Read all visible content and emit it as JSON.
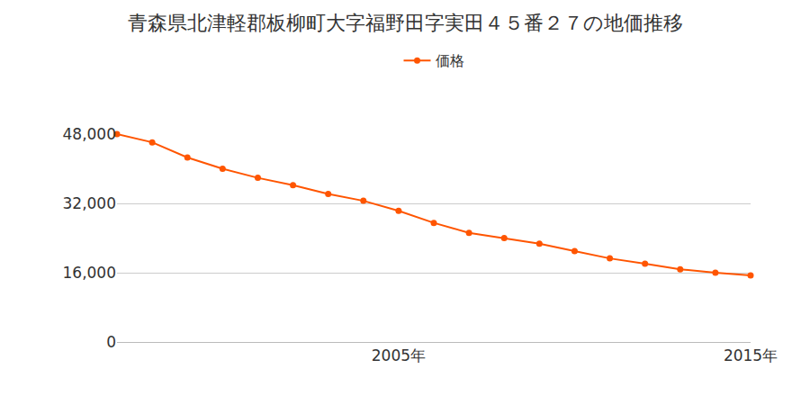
{
  "chart_data": {
    "type": "line",
    "title": "青森県北津軽郡板柳町大字福野田字実田４５番２７の地価推移",
    "x": [
      1997,
      1998,
      1999,
      2000,
      2001,
      2002,
      2003,
      2004,
      2005,
      2006,
      2007,
      2008,
      2009,
      2010,
      2011,
      2012,
      2013,
      2014,
      2015
    ],
    "series": [
      {
        "name": "価格",
        "color": "#ff5500",
        "values": [
          48000,
          46100,
          42600,
          40000,
          37900,
          36200,
          34200,
          32600,
          30300,
          27500,
          25200,
          24000,
          22700,
          21000,
          19300,
          18100,
          16800,
          16000,
          15400
        ]
      }
    ],
    "xlim": [
      1997,
      2015
    ],
    "xticks": [
      {
        "value": 2005,
        "label": "2005年"
      },
      {
        "value": 2015,
        "label": "2015年"
      }
    ],
    "ylim": [
      0,
      48000
    ],
    "yticks": [
      {
        "value": 0,
        "label": "0"
      },
      {
        "value": 16000,
        "label": "16,000"
      },
      {
        "value": 32000,
        "label": "32,000"
      },
      {
        "value": 48000,
        "label": "48,000"
      }
    ],
    "grid": true,
    "legend": "top",
    "marker": "circle"
  }
}
